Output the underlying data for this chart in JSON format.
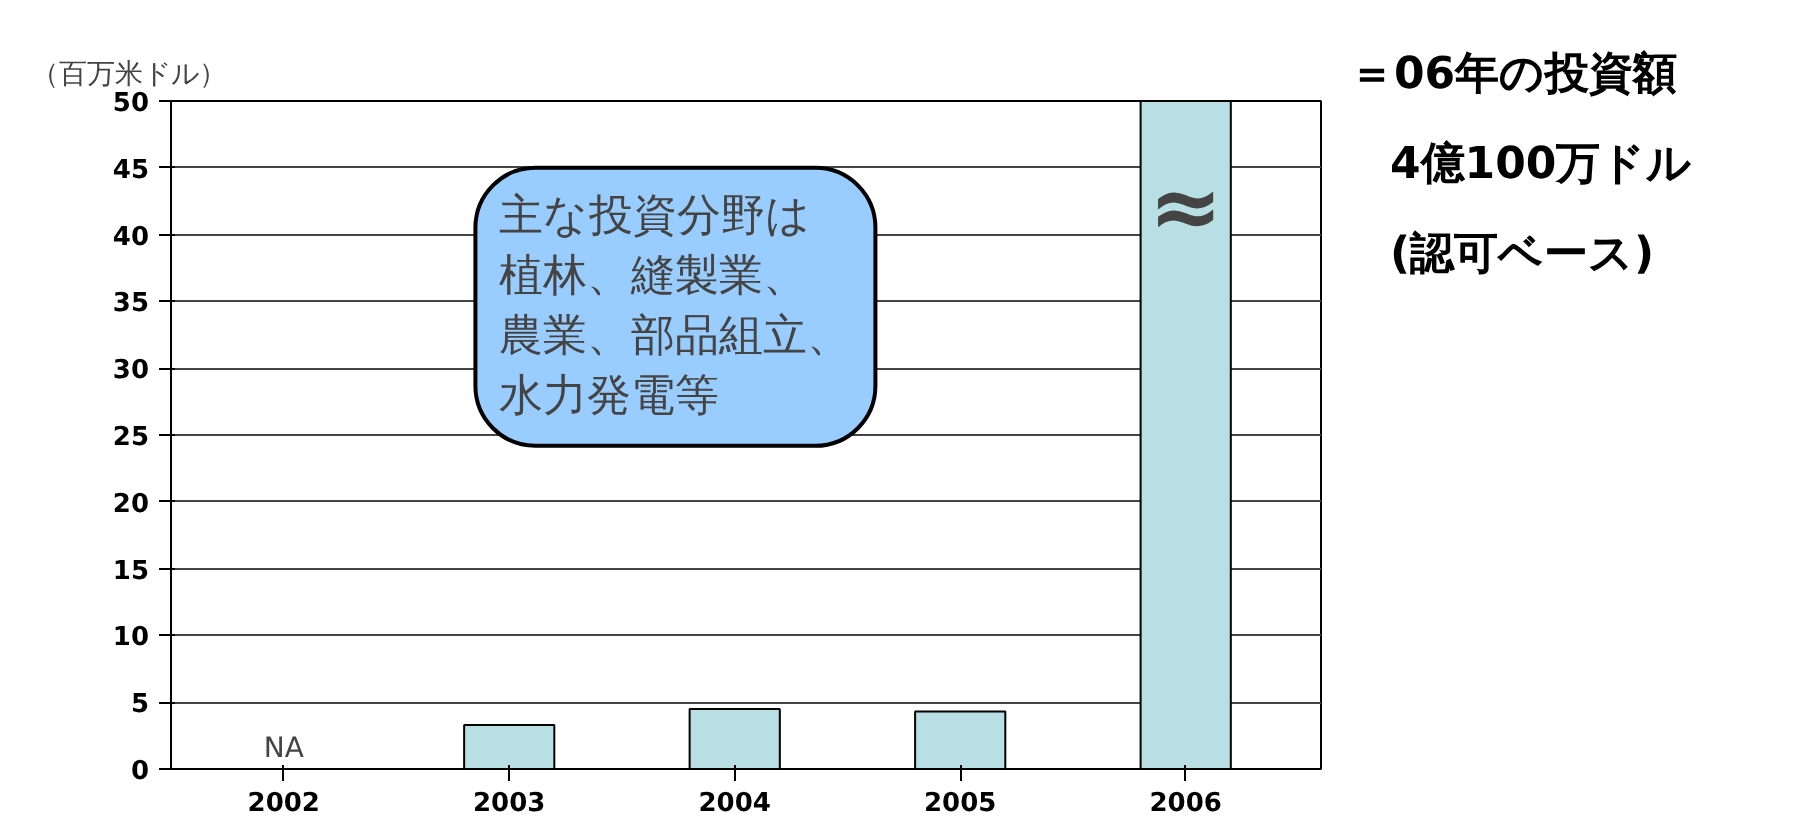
{
  "chart_data": {
    "type": "bar",
    "ylabel": "（百万米ドル）",
    "categories": [
      "2002",
      "2003",
      "2004",
      "2005",
      "2006"
    ],
    "values": [
      null,
      3.3,
      4.5,
      4.3,
      50
    ],
    "value_labels": [
      "NA",
      null,
      null,
      null,
      null
    ],
    "color": "#b8dfe3",
    "ylim": [
      0,
      50
    ],
    "yticks": [
      0,
      5,
      10,
      15,
      20,
      25,
      30,
      35,
      40,
      45,
      50
    ],
    "grid": "y",
    "annotations": [
      "主な投資分野は",
      "植林、縫製業、",
      "農業、部品組立、",
      "水力発電等",
      "≈",
      "＝06年の投資額",
      "4億100万ドル",
      "(認可ベース)"
    ]
  }
}
